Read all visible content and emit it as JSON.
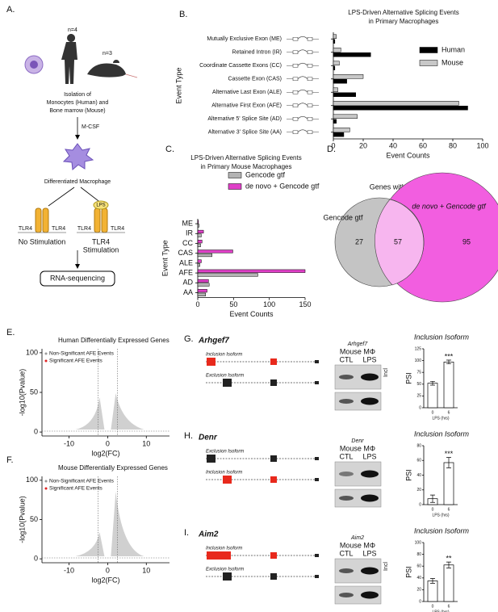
{
  "panels": {
    "A": {
      "letter": "A.",
      "human_n": "n=4",
      "mouse_n": "n=3",
      "isolation": [
        "Isolation of",
        "Monocytes (Human) and",
        "Bone marrow (Mouse)"
      ],
      "mcsf": "M-CSF",
      "macrophage": "Differentiated Macrophage",
      "tlr4": "TLR4",
      "lps": "LPS",
      "no_stim": "No Stimulation",
      "stim": "Stimulation",
      "rnaseq": "RNA-sequencing"
    },
    "B": {
      "letter": "B."
    },
    "C": {
      "letter": "C."
    },
    "D": {
      "letter": "D."
    },
    "E": {
      "letter": "E."
    },
    "F": {
      "letter": "F."
    },
    "G": {
      "letter": "G.",
      "gene": "Arhgef7",
      "top_isoform": "Inclusion Isoform",
      "bottom_isoform": "Exclusion Isoform",
      "gel_gene": "Arhgef7",
      "cells": "Mouse MΦ",
      "ctl": "CTL",
      "lps": "LPS",
      "band": "Incl"
    },
    "H": {
      "letter": "H.",
      "gene": "Denr",
      "top_isoform": "Exclusion Isoform",
      "bottom_isoform": "Inclusion Isoform",
      "gel_gene": "Denr",
      "cells": "Mouse MΦ",
      "ctl": "CTL",
      "lps": "LPS"
    },
    "I": {
      "letter": "I.",
      "gene": "Aim2",
      "top_isoform": "Inclusion Isoform",
      "bottom_isoform": "Exclusion Isoform",
      "gel_gene": "Aim2",
      "cells": "Mouse MΦ",
      "ctl": "CTL",
      "lps": "LPS",
      "band": "Incl"
    }
  },
  "chart_data": [
    {
      "type": "hbar",
      "title": [
        "LPS-Driven Alternative Splicing Events",
        "in Primary Macrophages"
      ],
      "categories": [
        "Mutually Exclusive Exon (ME)",
        "Retained Intron (IR)",
        "Coordinate Cassette Exons (CC)",
        "Cassette Exon (CAS)",
        "Alternative Last Exon (ALE)",
        "Alternative First Exon (AFE)",
        "Alternative 5' Splice Site (AD)",
        "Alternative 3' Splice Site (AA)"
      ],
      "series": [
        {
          "name": "Human",
          "color": "#000000",
          "values": [
            1,
            25,
            1,
            9,
            15,
            90,
            2,
            7
          ]
        },
        {
          "name": "Mouse",
          "color": "#c8c8c8",
          "values": [
            2,
            5,
            4,
            20,
            3,
            84,
            16,
            11
          ]
        }
      ],
      "xlim": [
        0,
        100
      ],
      "xticks": [
        0,
        20,
        40,
        60,
        80,
        100
      ],
      "xlabel": "Event Counts",
      "ylabel": "Event Type",
      "legend": "upper right"
    },
    {
      "type": "hbar",
      "title": [
        "LPS-Driven Alternative Splicing Events",
        "in Primary Mouse Macrophages"
      ],
      "categories": [
        "ME",
        "IR",
        "CC",
        "CAS",
        "ALE",
        "AFE",
        "AD",
        "AA"
      ],
      "series": [
        {
          "name": "Gencode gtf",
          "color": "#b4b4b4",
          "values": [
            2,
            5,
            4,
            20,
            3,
            84,
            16,
            11
          ]
        },
        {
          "name": "de novo + Gencode gtf",
          "color": "#e040c8",
          "values": [
            1,
            8,
            6,
            49,
            5,
            150,
            15,
            13
          ]
        }
      ],
      "xlim": [
        0,
        150
      ],
      "xticks": [
        0,
        50,
        100,
        150
      ],
      "xlabel": "Event Counts",
      "ylabel": "Event Type",
      "legend": "upper left"
    },
    {
      "type": "venn",
      "title": "Genes with AFE Events",
      "sets": [
        {
          "name": "Gencode gtf",
          "color": "#c4c4c4"
        },
        {
          "name": "de novo + Gencode gtf",
          "color": "#f25ee0"
        }
      ],
      "values": [
        27,
        57,
        95
      ]
    },
    {
      "type": "volcano",
      "title": "Human Differentially Expressed Genes",
      "xlabel": "log2(FC)",
      "ylabel": "-log10(Pvalue)",
      "xlim": [
        -17,
        16
      ],
      "ylim": [
        -5,
        105
      ],
      "xticks": [
        -10,
        0,
        10
      ],
      "yticks": [
        0,
        50,
        100
      ],
      "legend": [
        {
          "name": "Non-Significant AFE Events",
          "color": "#9a9a9a"
        },
        {
          "name": "Significant AFE Events",
          "color": "#e02020"
        }
      ]
    },
    {
      "type": "volcano",
      "title": "Mouse Differentially Expressed Genes",
      "xlabel": "log2(FC)",
      "ylabel": "-log10(Pvalue)",
      "xlim": [
        -17,
        16
      ],
      "ylim": [
        -5,
        105
      ],
      "xticks": [
        -10,
        0,
        10
      ],
      "yticks": [
        0,
        50,
        100
      ],
      "legend": [
        {
          "name": "Non-Significant AFE Events",
          "color": "#9a9a9a"
        },
        {
          "name": "Significant AFE Events",
          "color": "#e02020"
        }
      ]
    },
    {
      "type": "bar",
      "title": "Inclusion Isoform",
      "categories": [
        "0",
        "6"
      ],
      "values": [
        52,
        97
      ],
      "errors": [
        4,
        4
      ],
      "significance": "***",
      "ylim": [
        0,
        125
      ],
      "yticks": [
        0,
        25,
        50,
        75,
        100,
        125
      ],
      "ylabel": "PSI",
      "xlabel": "LPS (hrs)",
      "color": "#ffffff"
    },
    {
      "type": "bar",
      "title": "Inclusion Isoform",
      "categories": [
        "0",
        "6"
      ],
      "values": [
        8,
        57
      ],
      "errors": [
        5,
        7
      ],
      "significance": "***",
      "ylim": [
        0,
        80
      ],
      "yticks": [
        0,
        20,
        40,
        60,
        80
      ],
      "ylabel": "PSI",
      "xlabel": "LPS (hrs)",
      "color": "#ffffff"
    },
    {
      "type": "bar",
      "title": "Inclusion Isoform",
      "categories": [
        "0",
        "6"
      ],
      "values": [
        35,
        62
      ],
      "errors": [
        4,
        5
      ],
      "significance": "**",
      "ylim": [
        0,
        100
      ],
      "yticks": [
        0,
        20,
        40,
        60,
        80,
        100
      ],
      "ylabel": "PSI",
      "xlabel": "LPS (hrs)",
      "color": "#ffffff"
    }
  ]
}
